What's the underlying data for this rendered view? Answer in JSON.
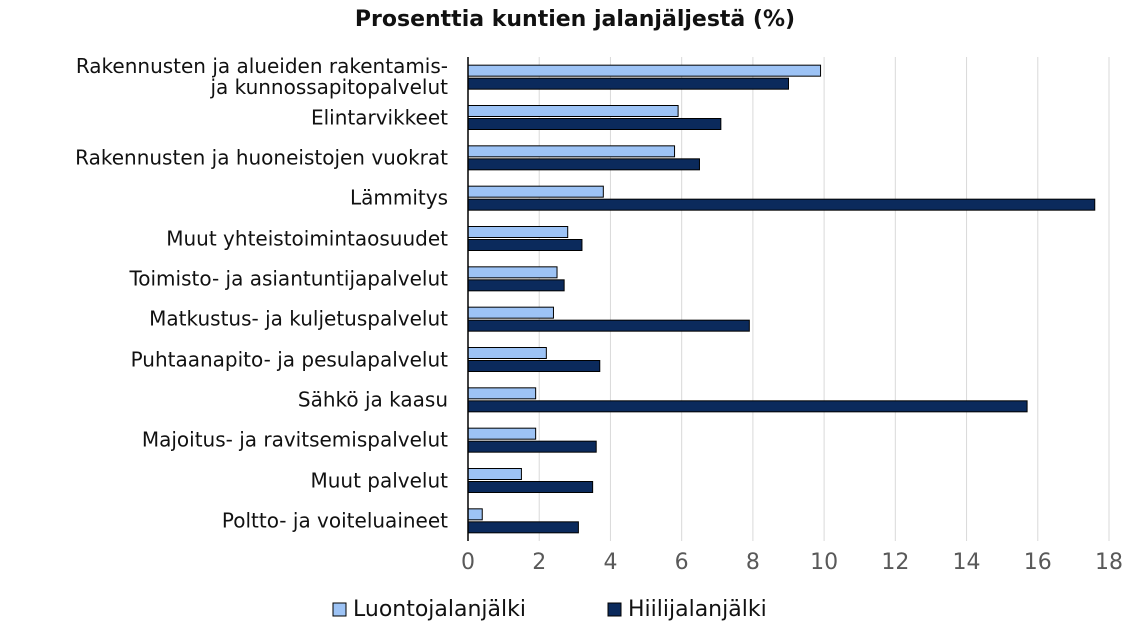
{
  "chart_data": {
    "type": "bar",
    "orientation": "horizontal",
    "title": "Prosenttia kuntien jalanjäljestä (%)",
    "categories": [
      "Rakennusten ja alueiden rakentamis-\nja kunnossapitopalvelut",
      "Elintarvikkeet",
      "Rakennusten ja huoneistojen vuokrat",
      "Lämmitys",
      "Muut yhteistoimintaosuudet",
      "Toimisto- ja asiantuntijapalvelut",
      "Matkustus- ja kuljetuspalvelut",
      "Puhtaanapito- ja pesulapalvelut",
      "Sähkö ja kaasu",
      "Majoitus- ja ravitsemispalvelut",
      "Muut palvelut",
      "Poltto- ja voiteluaineet"
    ],
    "series": [
      {
        "name": "Luontojalanjälki",
        "color": "#9dc3f5",
        "values": [
          9.9,
          5.9,
          5.8,
          3.8,
          2.8,
          2.5,
          2.4,
          2.2,
          1.9,
          1.9,
          1.5,
          0.4
        ]
      },
      {
        "name": "Hiilijalanjälki",
        "color": "#0b2a5c",
        "values": [
          9.0,
          7.1,
          6.5,
          17.6,
          3.2,
          2.7,
          7.9,
          3.7,
          15.7,
          3.6,
          3.5,
          3.1
        ]
      }
    ],
    "xlim": [
      0,
      18
    ],
    "xticks": [
      0,
      2,
      4,
      6,
      8,
      10,
      12,
      14,
      16,
      18
    ],
    "grid": true,
    "legend": "bottom"
  }
}
